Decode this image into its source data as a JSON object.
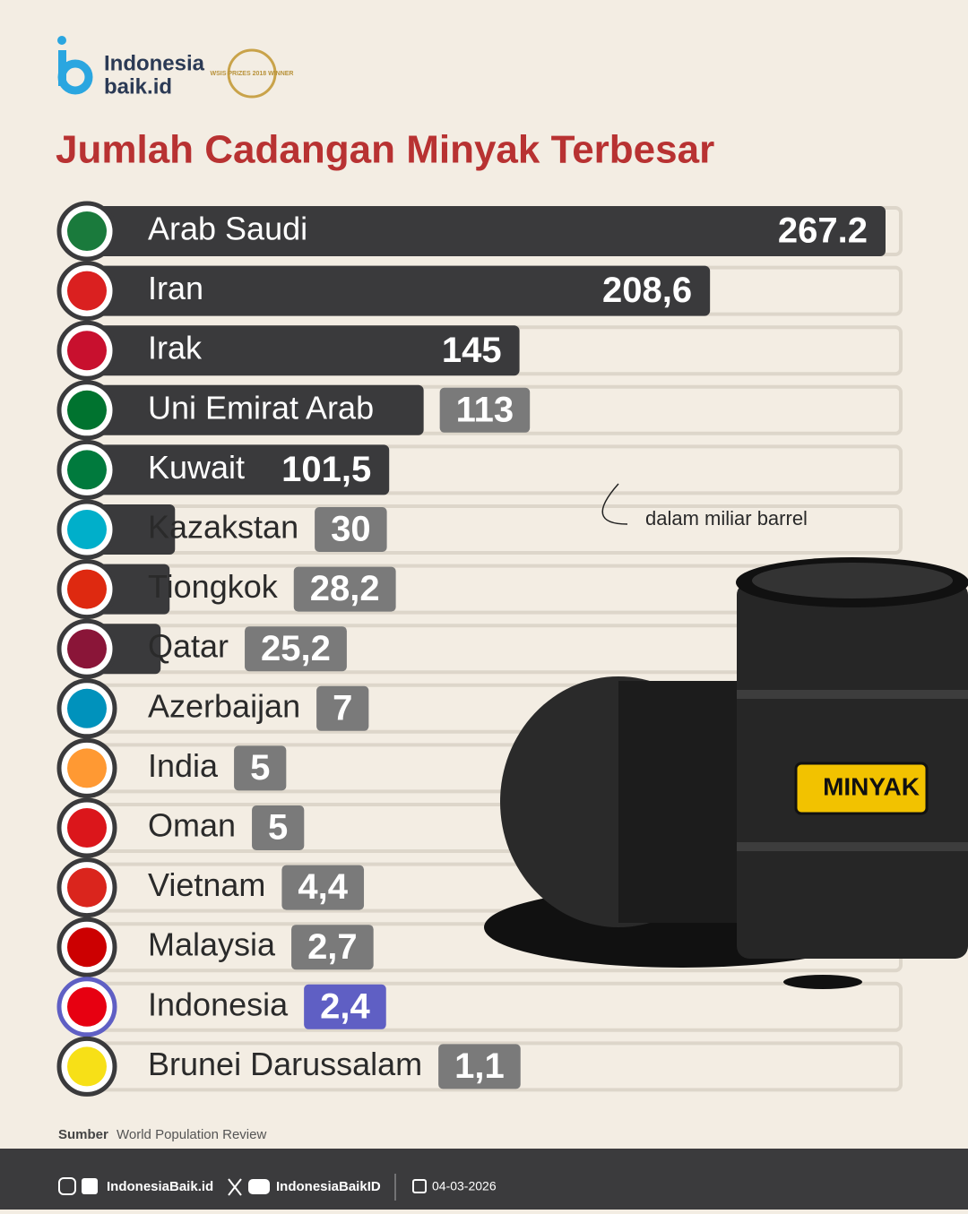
{
  "header": {
    "logo_line1": "Indonesia",
    "logo_line2": "baik.id",
    "award": "WSIS PRIZES 2018 WINNER"
  },
  "chart_data": {
    "type": "bar",
    "orientation": "horizontal",
    "title": "Jumlah Cadangan Minyak Terbesar",
    "unit_note": "dalam miliar barrel",
    "categories": [
      "Arab Saudi",
      "Iran",
      "Irak",
      "Uni Emirat Arab",
      "Kuwait",
      "Kazakstan",
      "Tiongkok",
      "Qatar",
      "Azerbaijan",
      "India",
      "Oman",
      "Vietnam",
      "Malaysia",
      "Indonesia",
      "Brunei Darussalam"
    ],
    "values": [
      267.2,
      208.6,
      145,
      113,
      101.5,
      30,
      28.2,
      25.2,
      7,
      5,
      5,
      4.4,
      2.7,
      2.4,
      1.1
    ],
    "value_labels": [
      "267.2",
      "208,6",
      "145",
      "113",
      "101,5",
      "30",
      "28,2",
      "25,2",
      "7",
      "5",
      "5",
      "4,4",
      "2,7",
      "2,4",
      "1,1"
    ],
    "colors": [
      "#3a3a3c",
      "#3a3a3c",
      "#3a3a3c",
      "#3a3a3c",
      "#3a3a3c",
      "#3a3a3c",
      "#3a3a3c",
      "#3a3a3c",
      "#3a3a3c",
      "#3a3a3c",
      "#3a3a3c",
      "#3a3a3c",
      "#3a3a3c",
      "#5f5fc4",
      "#3a3a3c"
    ]
  },
  "illustration": {
    "barrel_label": "MINYAK"
  },
  "source": {
    "label": "Sumber",
    "text": "World Population Review"
  },
  "footer": {
    "site": "IndonesiaBaik.id",
    "handle": "IndonesiaBaikID",
    "date": "04-03-2026"
  }
}
